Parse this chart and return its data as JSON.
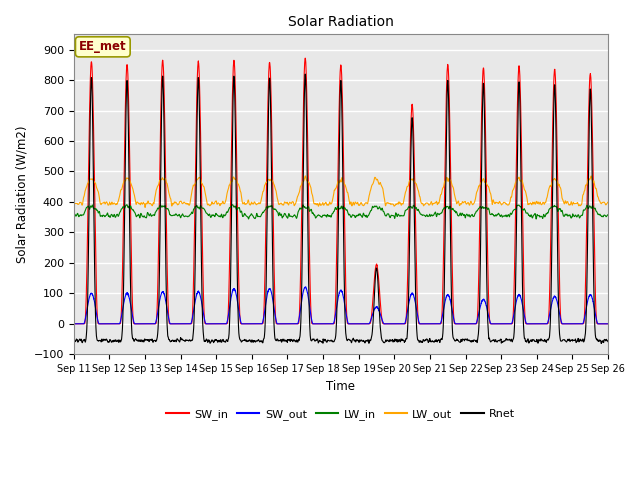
{
  "title": "Solar Radiation",
  "xlabel": "Time",
  "ylabel": "Solar Radiation (W/m2)",
  "ylim": [
    -100,
    950
  ],
  "annotation_text": "EE_met",
  "annotation_color": "#8B0000",
  "annotation_bg": "#FFFFCC",
  "annotation_border": "#999900",
  "bg_color": "#E8E8E8",
  "grid_color": "white",
  "legend_entries": [
    "SW_in",
    "SW_out",
    "LW_in",
    "LW_out",
    "Rnet"
  ],
  "line_colors": [
    "red",
    "blue",
    "green",
    "orange",
    "black"
  ],
  "n_days": 15,
  "tick_labels": [
    "Sep 11",
    "Sep 12",
    "Sep 13",
    "Sep 14",
    "Sep 15",
    "Sep 16",
    "Sep 17",
    "Sep 18",
    "Sep 19",
    "Sep 20",
    "Sep 21",
    "Sep 22",
    "Sep 23",
    "Sep 24",
    "Sep 25",
    "Sep 26"
  ],
  "SW_in_peaks": [
    860,
    850,
    865,
    860,
    865,
    858,
    872,
    850,
    195,
    720,
    850,
    840,
    845,
    835,
    820
  ],
  "SW_out_peaks": [
    100,
    100,
    105,
    105,
    115,
    115,
    120,
    110,
    55,
    100,
    95,
    80,
    95,
    90,
    95
  ],
  "LW_in_base": 355,
  "LW_out_base": 395,
  "Rnet_night": -55,
  "seed": 12345
}
